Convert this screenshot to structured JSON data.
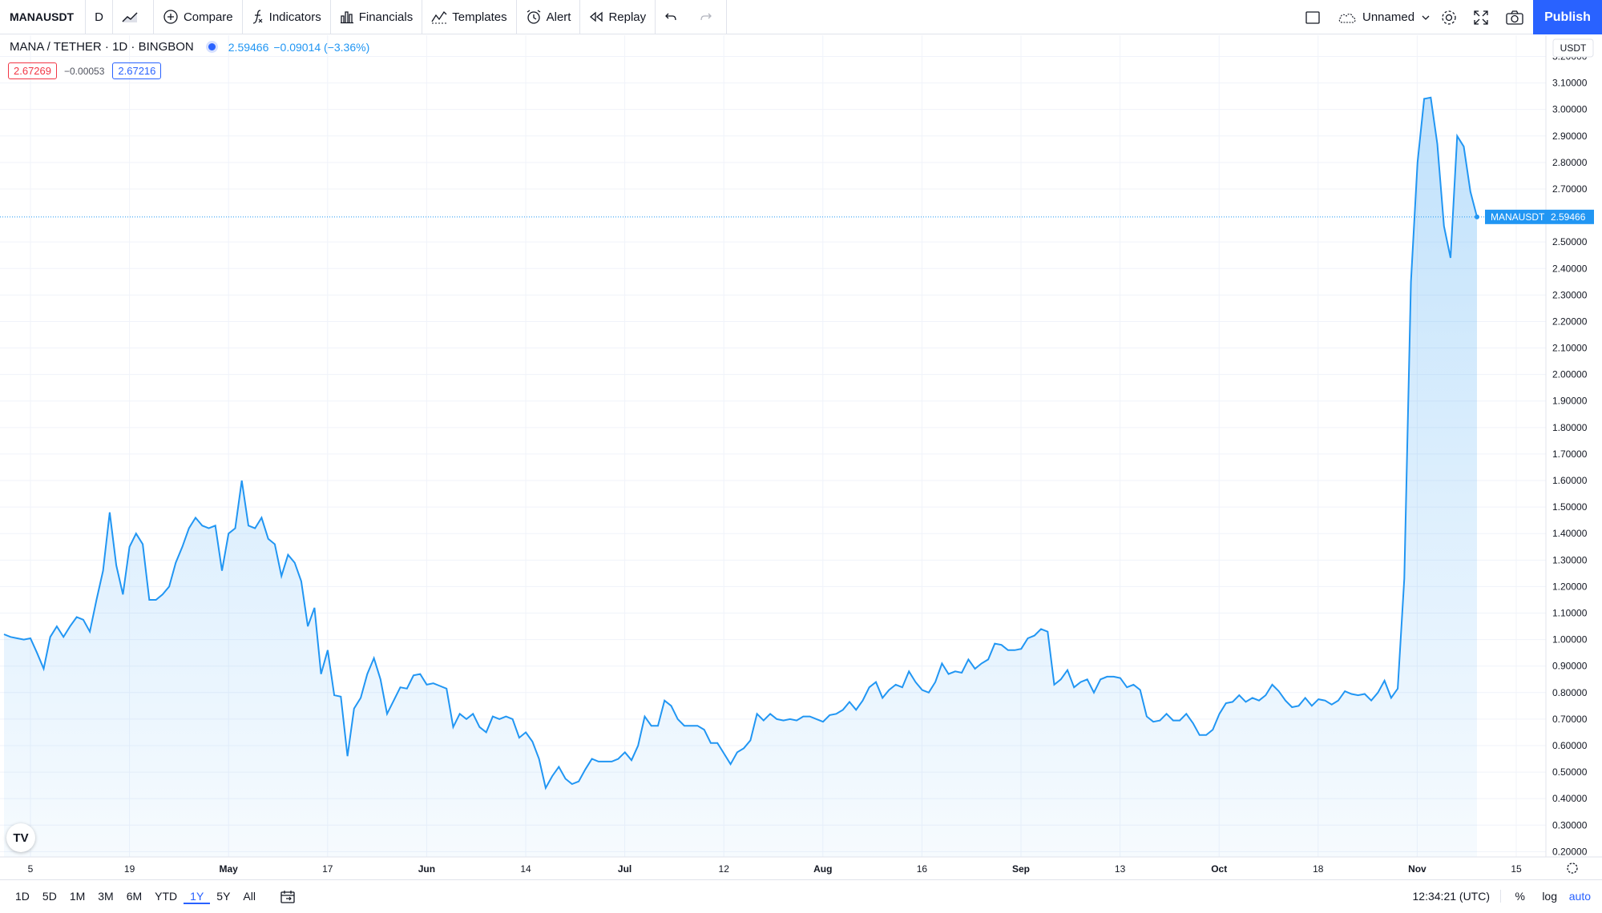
{
  "toolbar": {
    "symbol": "MANAUSDT",
    "interval": "D",
    "compare_label": "Compare",
    "indicators_label": "Indicators",
    "financials_label": "Financials",
    "templates_label": "Templates",
    "alert_label": "Alert",
    "replay_label": "Replay",
    "layout_name": "Unnamed",
    "publish_label": "Publish"
  },
  "legend": {
    "title": "MANA / TETHER · 1D · BINGBON",
    "last": "2.59466",
    "change": "−0.09014 (−3.36%)",
    "bid": "2.67269",
    "spread": "−0.00053",
    "ask": "2.67216"
  },
  "price_axis": {
    "currency": "USDT",
    "last_label": "MANAUSDT",
    "last_value": "2.59466"
  },
  "range_buttons": [
    "1D",
    "5D",
    "1M",
    "3M",
    "6M",
    "YTD",
    "1Y",
    "5Y",
    "All"
  ],
  "active_range": "1Y",
  "clock": "12:34:21 (UTC)",
  "scale_buttons": {
    "percent": "%",
    "log": "log",
    "auto": "auto"
  },
  "logo_text": "TV",
  "colors": {
    "line": "#2196f3",
    "accent": "#2962ff",
    "bid": "#f23645"
  },
  "chart_data": {
    "type": "area",
    "x_tick_labels": [
      "5",
      "19",
      "May",
      "17",
      "Jun",
      "14",
      "Jul",
      "12",
      "Aug",
      "16",
      "Sep",
      "13",
      "Oct",
      "18",
      "Nov",
      "15"
    ],
    "y_tick_labels": [
      "3.20000",
      "3.10000",
      "3.00000",
      "2.90000",
      "2.80000",
      "2.70000",
      "2.50000",
      "2.40000",
      "2.30000",
      "2.20000",
      "2.10000",
      "2.00000",
      "1.90000",
      "1.80000",
      "1.70000",
      "1.60000",
      "1.50000",
      "1.40000",
      "1.30000",
      "1.20000",
      "1.10000",
      "1.00000",
      "0.90000",
      "0.80000",
      "0.70000",
      "0.60000",
      "0.50000",
      "0.40000",
      "0.30000",
      "0.20000"
    ],
    "ylim": [
      0.18,
      3.28
    ],
    "grid": true,
    "series": [
      {
        "values": [
          1.02,
          1.01,
          1.005,
          1.0,
          1.005,
          0.95,
          0.89,
          1.01,
          1.05,
          1.01,
          1.05,
          1.085,
          1.075,
          1.03,
          1.15,
          1.26,
          1.48,
          1.28,
          1.17,
          1.35,
          1.4,
          1.36,
          1.15,
          1.15,
          1.17,
          1.2,
          1.29,
          1.35,
          1.42,
          1.46,
          1.43,
          1.42,
          1.43,
          1.26,
          1.4,
          1.42,
          1.6,
          1.43,
          1.42,
          1.46,
          1.38,
          1.36,
          1.24,
          1.32,
          1.29,
          1.22,
          1.05,
          1.12,
          0.87,
          0.96,
          0.79,
          0.785,
          0.56,
          0.74,
          0.78,
          0.87,
          0.93,
          0.85,
          0.72,
          0.77,
          0.82,
          0.815,
          0.865,
          0.87,
          0.83,
          0.835,
          0.825,
          0.815,
          0.67,
          0.72,
          0.7,
          0.72,
          0.67,
          0.65,
          0.71,
          0.7,
          0.71,
          0.7,
          0.63,
          0.65,
          0.615,
          0.55,
          0.44,
          0.485,
          0.52,
          0.475,
          0.455,
          0.465,
          0.51,
          0.55,
          0.54,
          0.54,
          0.54,
          0.55,
          0.575,
          0.545,
          0.6,
          0.71,
          0.675,
          0.675,
          0.77,
          0.75,
          0.7,
          0.675,
          0.675,
          0.675,
          0.66,
          0.61,
          0.61,
          0.57,
          0.53,
          0.575,
          0.59,
          0.62,
          0.72,
          0.695,
          0.72,
          0.7,
          0.695,
          0.7,
          0.695,
          0.71,
          0.71,
          0.7,
          0.69,
          0.715,
          0.72,
          0.735,
          0.765,
          0.735,
          0.77,
          0.82,
          0.84,
          0.78,
          0.81,
          0.83,
          0.82,
          0.88,
          0.84,
          0.81,
          0.8,
          0.84,
          0.91,
          0.87,
          0.88,
          0.875,
          0.925,
          0.89,
          0.91,
          0.925,
          0.985,
          0.98,
          0.96,
          0.96,
          0.965,
          1.005,
          1.015,
          1.04,
          1.03,
          0.83,
          0.85,
          0.885,
          0.82,
          0.84,
          0.85,
          0.8,
          0.85,
          0.86,
          0.86,
          0.855,
          0.82,
          0.83,
          0.81,
          0.71,
          0.69,
          0.695,
          0.72,
          0.695,
          0.695,
          0.72,
          0.685,
          0.64,
          0.64,
          0.66,
          0.72,
          0.76,
          0.765,
          0.79,
          0.765,
          0.78,
          0.77,
          0.79,
          0.83,
          0.805,
          0.77,
          0.745,
          0.75,
          0.78,
          0.75,
          0.775,
          0.77,
          0.755,
          0.77,
          0.805,
          0.795,
          0.79,
          0.795,
          0.77,
          0.8,
          0.845,
          0.78,
          0.815,
          1.23,
          2.35,
          2.8,
          3.04,
          3.045,
          2.87,
          2.56,
          2.44,
          2.9,
          2.86,
          2.69,
          2.59466
        ]
      }
    ]
  }
}
